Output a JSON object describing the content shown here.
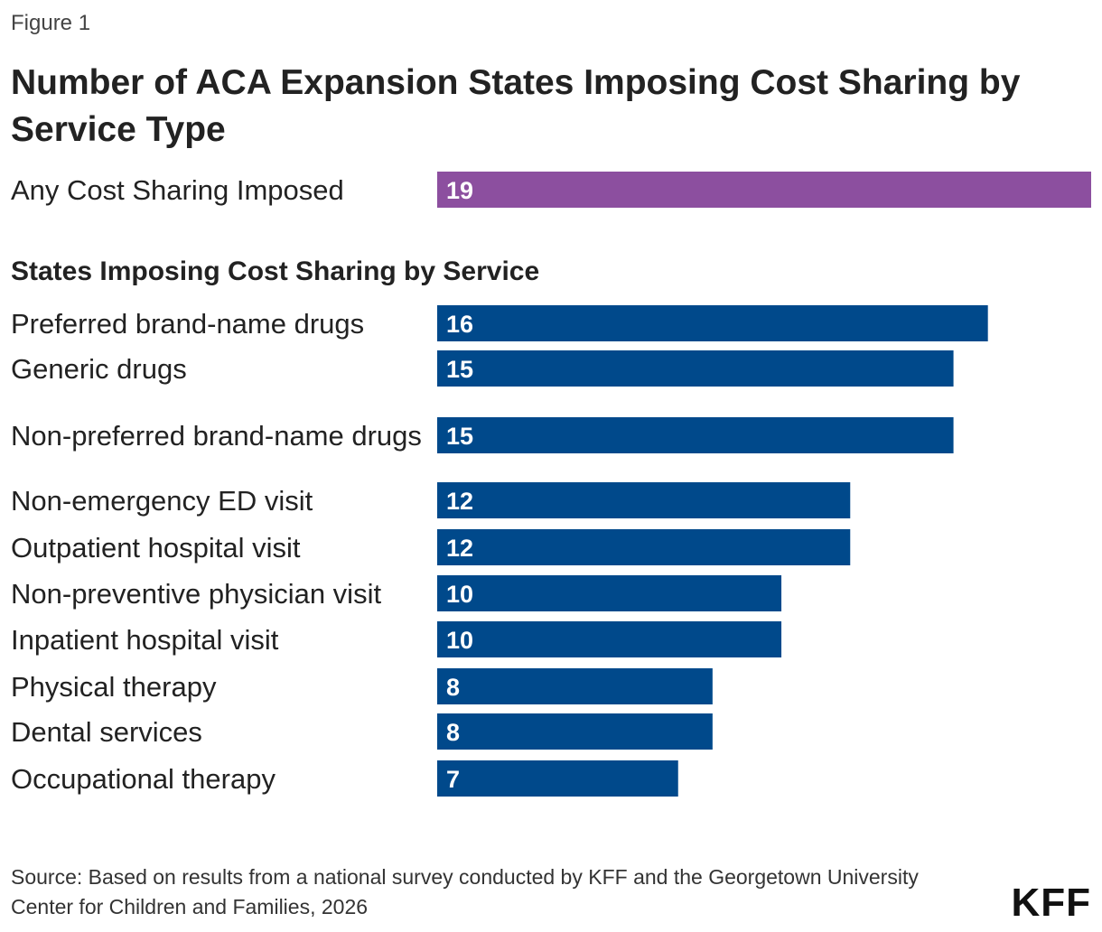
{
  "figure_label": "Figure 1",
  "title": "Number of ACA Expansion States Imposing Cost Sharing by Service Type",
  "section_heading": "States Imposing Cost Sharing by Service",
  "source": "Source: Based on results from a national survey conducted by KFF and the Georgetown University Center for Children and Families, 2026",
  "logo": "KFF",
  "colors": {
    "summary_bar": "#8c4f9f",
    "service_bar": "#00498b"
  },
  "chart_data": [
    {
      "type": "bar",
      "orientation": "horizontal",
      "categories": [
        "Any Cost Sharing Imposed"
      ],
      "values": [
        19
      ],
      "xlim": [
        0,
        19
      ]
    },
    {
      "type": "bar",
      "orientation": "horizontal",
      "title": "States Imposing Cost Sharing by Service",
      "categories": [
        "Preferred brand-name drugs",
        "Generic drugs",
        "Non-preferred brand-name drugs",
        "Non-emergency ED visit",
        "Outpatient hospital visit",
        "Non-preventive physician visit",
        "Inpatient hospital visit",
        "Physical therapy",
        "Dental services",
        "Occupational therapy"
      ],
      "values": [
        16,
        15,
        15,
        12,
        12,
        10,
        10,
        8,
        8,
        7
      ],
      "xlim": [
        0,
        19
      ]
    }
  ]
}
